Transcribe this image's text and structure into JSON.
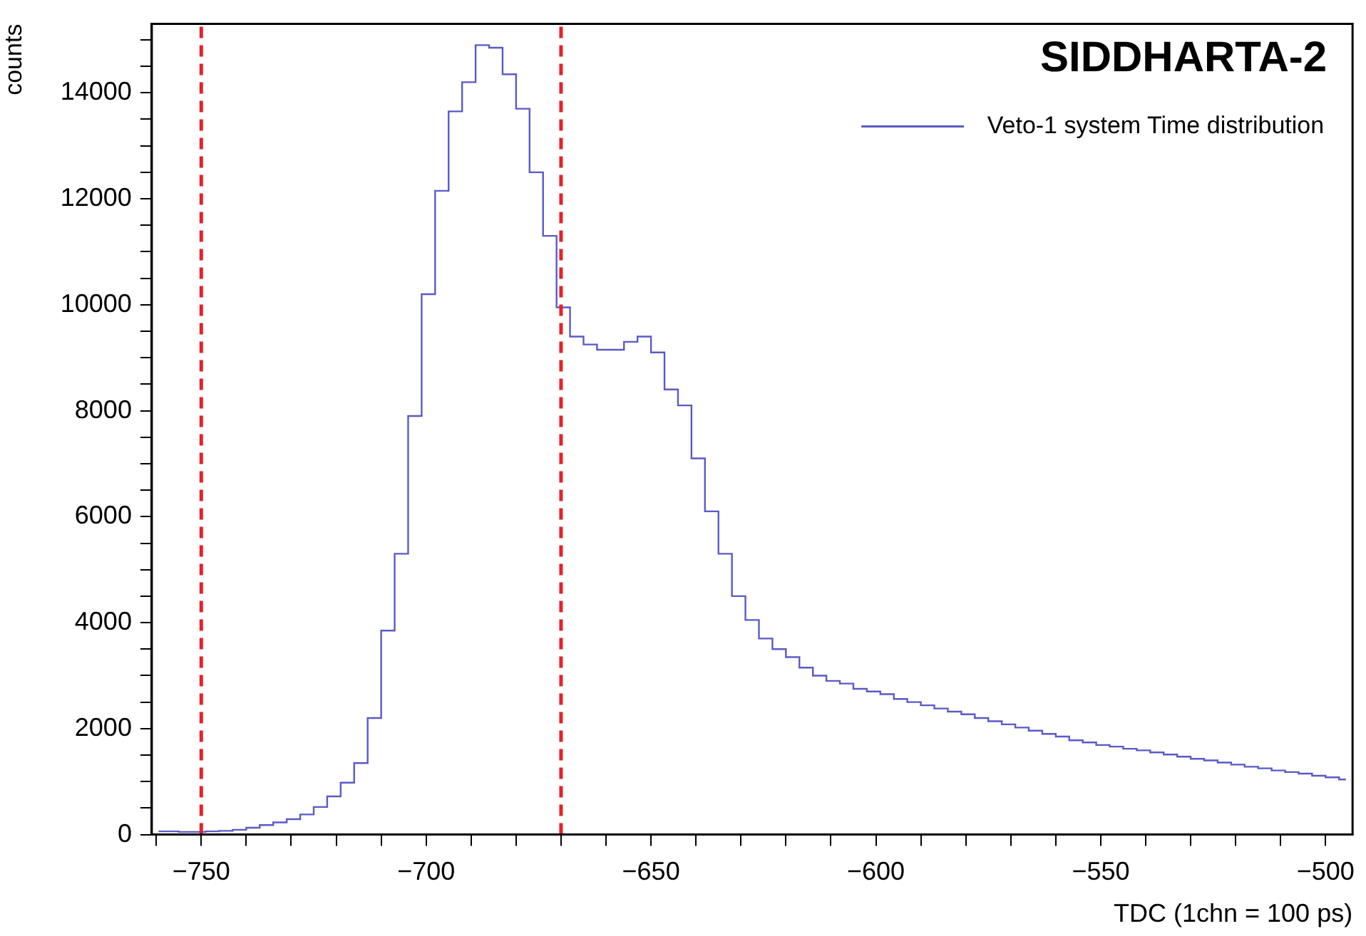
{
  "chart_data": {
    "type": "step",
    "title": "SIDDHARTA-2",
    "xlabel": "TDC (1chn = 100 ps)",
    "ylabel": "counts",
    "legend": "top right",
    "grid": false,
    "x": [
      -759.5,
      -756.5,
      -753.5,
      -750.5,
      -747.5,
      -744.5,
      -741.5,
      -738.5,
      -735.5,
      -732.5,
      -729.5,
      -726.5,
      -723.5,
      -720.5,
      -717.5,
      -714.5,
      -711.5,
      -708.5,
      -705.5,
      -702.5,
      -699.5,
      -696.5,
      -693.5,
      -690.5,
      -687.5,
      -684.5,
      -681.5,
      -678.5,
      -675.5,
      -672.5,
      -669.5,
      -666.5,
      -663.5,
      -660.5,
      -657.5,
      -654.5,
      -651.5,
      -648.5,
      -645.5,
      -642.5,
      -639.5,
      -636.5,
      -633.5,
      -630.5,
      -627.5,
      -624.5,
      -621.5,
      -618.5,
      -615.5,
      -612.5,
      -609.5,
      -606.5,
      -603.5,
      -600.5,
      -597.5,
      -594.5,
      -591.5,
      -588.5,
      -585.5,
      -582.5,
      -579.5,
      -576.5,
      -573.5,
      -570.5,
      -567.5,
      -564.5,
      -561.5,
      -558.5,
      -555.5,
      -552.5,
      -549.5,
      -546.5,
      -543.5,
      -540.5,
      -537.5,
      -534.5,
      -531.5,
      -528.5,
      -525.5,
      -522.5,
      -519.5,
      -516.5,
      -513.5,
      -510.5,
      -507.5,
      -504.5,
      -501.5,
      -498.5,
      -495.5
    ],
    "series": [
      {
        "name": "Veto-1 system Time distribution",
        "color": "#5a5ac8",
        "values": [
          60,
          60,
          50,
          50,
          60,
          70,
          90,
          130,
          180,
          230,
          290,
          380,
          520,
          720,
          980,
          1350,
          2200,
          3850,
          5300,
          7900,
          10200,
          12150,
          13650,
          14200,
          14900,
          14850,
          14350,
          13700,
          12500,
          11300,
          9950,
          9400,
          9250,
          9150,
          9150,
          9300,
          9400,
          9100,
          8400,
          8100,
          7100,
          6100,
          5300,
          4500,
          4050,
          3700,
          3500,
          3350,
          3150,
          3000,
          2900,
          2850,
          2750,
          2700,
          2650,
          2560,
          2500,
          2440,
          2380,
          2320,
          2270,
          2200,
          2140,
          2080,
          2020,
          1960,
          1900,
          1850,
          1780,
          1740,
          1690,
          1660,
          1620,
          1590,
          1550,
          1510,
          1470,
          1430,
          1400,
          1360,
          1320,
          1280,
          1250,
          1210,
          1180,
          1150,
          1110,
          1080,
          1040
        ]
      }
    ],
    "xlim": [
      -761,
      -494
    ],
    "xticks": [
      {
        "value": -760,
        "label": null
      },
      -750,
      {
        "value": -740,
        "label": null
      },
      {
        "value": -730,
        "label": null
      },
      {
        "value": -720,
        "label": null
      },
      {
        "value": -710,
        "label": null
      },
      -700,
      {
        "value": -690,
        "label": null
      },
      {
        "value": -680,
        "label": null
      },
      {
        "value": -670,
        "label": null
      },
      {
        "value": -660,
        "label": null
      },
      -650,
      {
        "value": -640,
        "label": null
      },
      {
        "value": -630,
        "label": null
      },
      {
        "value": -620,
        "label": null
      },
      {
        "value": -610,
        "label": null
      },
      -600,
      {
        "value": -590,
        "label": null
      },
      {
        "value": -580,
        "label": null
      },
      {
        "value": -570,
        "label": null
      },
      {
        "value": -560,
        "label": null
      },
      -550,
      {
        "value": -540,
        "label": null
      },
      {
        "value": -530,
        "label": null
      },
      {
        "value": -520,
        "label": null
      },
      {
        "value": -510,
        "label": null
      },
      -500
    ],
    "ylim": [
      0,
      15300
    ],
    "yticks": [
      0,
      {
        "value": 500,
        "label": null
      },
      {
        "value": 1000,
        "label": null
      },
      {
        "value": 1500,
        "label": null
      },
      2000,
      {
        "value": 2500,
        "label": null
      },
      {
        "value": 3000,
        "label": null
      },
      {
        "value": 3500,
        "label": null
      },
      4000,
      {
        "value": 4500,
        "label": null
      },
      {
        "value": 5000,
        "label": null
      },
      {
        "value": 5500,
        "label": null
      },
      6000,
      {
        "value": 6500,
        "label": null
      },
      {
        "value": 7000,
        "label": null
      },
      {
        "value": 7500,
        "label": null
      },
      8000,
      {
        "value": 8500,
        "label": null
      },
      {
        "value": 9000,
        "label": null
      },
      {
        "value": 9500,
        "label": null
      },
      10000,
      {
        "value": 10500,
        "label": null
      },
      {
        "value": 11000,
        "label": null
      },
      {
        "value": 11500,
        "label": null
      },
      12000,
      {
        "value": 12500,
        "label": null
      },
      {
        "value": 13000,
        "label": null
      },
      {
        "value": 13500,
        "label": null
      },
      14000,
      {
        "value": 14500,
        "label": null
      },
      {
        "value": 15000,
        "label": null
      }
    ],
    "ref_lines": [
      {
        "axis": "x",
        "value": -750,
        "color": "#e8202a",
        "line_style": "dashed"
      },
      {
        "axis": "x",
        "value": -670,
        "color": "#e8202a",
        "line_style": "dashed"
      }
    ]
  }
}
